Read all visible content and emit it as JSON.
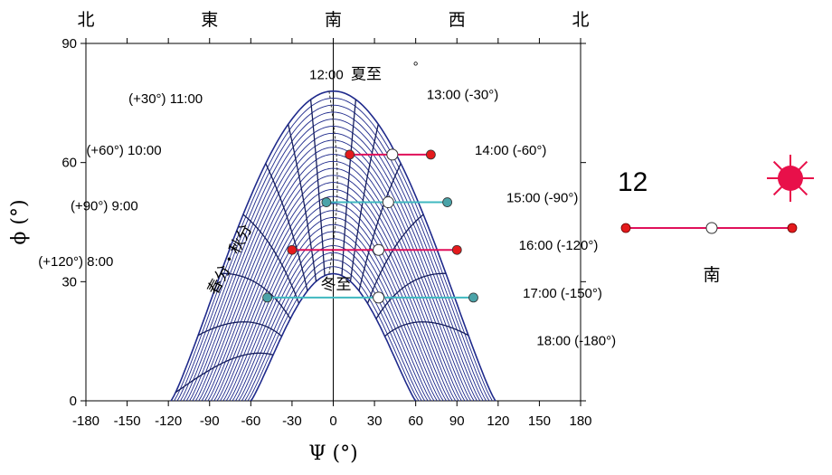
{
  "colors": {
    "curve": "#1f2a8c",
    "hour_line": "#141c5c",
    "pair_red": "#e0105a",
    "pair_teal": "#3fb8c0",
    "dot_red": "#e41a1c",
    "dot_teal": "#4aa3a8",
    "sun": "#e8104a"
  },
  "chart_data": {
    "type": "line",
    "xlabel": "Ψ (°)",
    "ylabel": "ϕ (°)",
    "xlim": [
      -180,
      180
    ],
    "ylim": [
      0,
      90
    ],
    "x_ticks": [
      "-180",
      "-150",
      "-120",
      "-90",
      "-60",
      "-30",
      "0",
      "30",
      "60",
      "90",
      "120",
      "150",
      "180"
    ],
    "y_ticks": [
      "0",
      "30",
      "60",
      "90"
    ],
    "grid": false,
    "directions_top": [
      {
        "label": "北",
        "psi": -180
      },
      {
        "label": "東",
        "psi": -90
      },
      {
        "label": "南",
        "psi": 0
      },
      {
        "label": "西",
        "psi": 90
      },
      {
        "label": "北",
        "psi": 180
      }
    ],
    "hour_labels": [
      {
        "text": "12:00",
        "psi": -5,
        "phi": 81
      },
      {
        "text": "(+30°)  11:00",
        "psi": -95,
        "phi": 75
      },
      {
        "text": "(+60°)  10:00",
        "psi": -125,
        "phi": 62
      },
      {
        "text": "(+90°)  9:00",
        "psi": -142,
        "phi": 48
      },
      {
        "text": "(+120°)  8:00",
        "psi": -160,
        "phi": 34
      },
      {
        "text": "13:00  (-30°)",
        "psi": 68,
        "phi": 76
      },
      {
        "text": "14:00  (-60°)",
        "psi": 103,
        "phi": 62
      },
      {
        "text": "15:00  (-90°)",
        "psi": 126,
        "phi": 50
      },
      {
        "text": "16:00  (-120°)",
        "psi": 135,
        "phi": 38
      },
      {
        "text": "17:00  (-150°)",
        "psi": 138,
        "phi": 26
      },
      {
        "text": "18:00  (-180°)",
        "psi": 148,
        "phi": 14
      }
    ],
    "season_labels": [
      {
        "text": "夏至",
        "psi": 24,
        "phi": 81
      },
      {
        "text": "冬至",
        "psi": 2,
        "phi": 28
      },
      {
        "text": "春分・秋分",
        "psi": -72,
        "phi": 35
      }
    ],
    "stray_mark": "°",
    "series": [
      {
        "type": "season_envelope_outer",
        "x": [
          -118,
          -110,
          -100,
          -90,
          -80,
          -70,
          -60,
          -50,
          -40,
          -30,
          -20,
          -10,
          0,
          10,
          20,
          30,
          40,
          50,
          60,
          70,
          80,
          90,
          100,
          110,
          118
        ],
        "y": [
          0,
          10,
          21,
          32,
          42,
          51,
          59,
          66,
          71,
          75,
          77,
          78,
          78,
          78,
          77,
          75,
          72,
          67,
          61,
          54,
          45,
          34,
          22,
          10,
          0
        ]
      },
      {
        "type": "season_envelope_inner",
        "x": [
          -60,
          -55,
          -50,
          -40,
          -30,
          -20,
          -10,
          0,
          10,
          20,
          30,
          40,
          50,
          55,
          60
        ],
        "y": [
          0,
          6,
          11,
          19,
          25,
          29,
          31,
          32,
          31,
          29,
          25,
          19,
          11,
          6,
          0
        ]
      }
    ],
    "pairs": [
      {
        "psi_left": 12,
        "psi_mid": 43,
        "psi_right": 71,
        "phi": 62,
        "color": "red"
      },
      {
        "psi_left": -5,
        "psi_mid": 40,
        "psi_right": 83,
        "phi": 50,
        "color": "teal"
      },
      {
        "psi_left": -30,
        "psi_mid": 33,
        "psi_right": 90,
        "phi": 38,
        "color": "red"
      },
      {
        "psi_left": -48,
        "psi_mid": 33,
        "psi_right": 102,
        "phi": 26,
        "color": "teal"
      }
    ]
  },
  "legend": {
    "number": "12",
    "direction": "南"
  }
}
